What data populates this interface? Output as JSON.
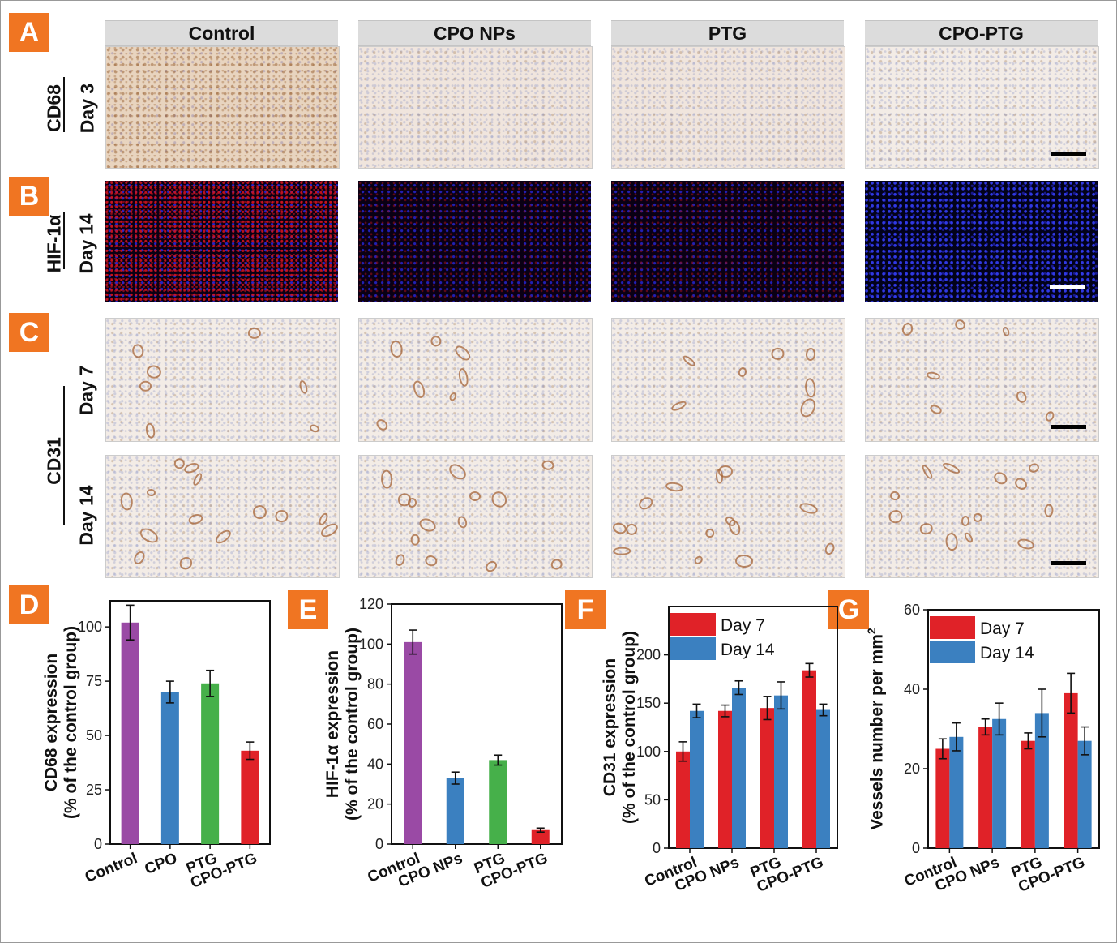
{
  "panel_labels": [
    "A",
    "B",
    "C",
    "D",
    "E",
    "F",
    "G"
  ],
  "column_headers": [
    "Control",
    "CPO NPs",
    "PTG",
    "CPO-PTG"
  ],
  "row_labels": {
    "cd68": "CD68",
    "day3": "Day 3",
    "hif": "HIF-1α",
    "day14_b": "Day 14",
    "cd31": "CD31",
    "day7": "Day 7",
    "day14_c": "Day 14"
  },
  "chart_data": [
    {
      "type": "bar",
      "panel": "D",
      "categories": [
        "Control",
        "CPO",
        "PTG",
        "CPO-PTG"
      ],
      "series": [
        {
          "values": [
            102,
            70,
            74,
            43
          ],
          "errors": [
            8,
            5,
            6,
            4
          ]
        }
      ],
      "bar_colors": [
        "#9a4aa5",
        "#3b80c0",
        "#46b04a",
        "#e02228"
      ],
      "ylabel_line1": "CD68 expression",
      "ylabel_line2": "(% of the control group)",
      "yticks": [
        0,
        25,
        50,
        75,
        100
      ],
      "ylim": [
        0,
        112
      ]
    },
    {
      "type": "bar",
      "panel": "E",
      "categories": [
        "Control",
        "CPO NPs",
        "PTG",
        "CPO-PTG"
      ],
      "series": [
        {
          "values": [
            101,
            33,
            42,
            7
          ],
          "errors": [
            6,
            3,
            2.5,
            1
          ]
        }
      ],
      "bar_colors": [
        "#9a4aa5",
        "#3b80c0",
        "#46b04a",
        "#e02228"
      ],
      "ylabel_line1": "HIF-1α expression",
      "ylabel_line2": "(% of the control group)",
      "yticks": [
        0,
        20,
        40,
        60,
        80,
        100,
        120
      ],
      "ylim": [
        0,
        120
      ]
    },
    {
      "type": "bar",
      "panel": "F",
      "categories": [
        "Control",
        "CPO NPs",
        "PTG",
        "CPO-PTG"
      ],
      "series": [
        {
          "name": "Day 7",
          "color": "#e02228",
          "values": [
            100,
            142,
            145,
            184
          ],
          "errors": [
            10,
            6,
            12,
            7
          ]
        },
        {
          "name": "Day 14",
          "color": "#3b80c0",
          "values": [
            142,
            166,
            158,
            143
          ],
          "errors": [
            7,
            7,
            14,
            6
          ]
        }
      ],
      "ylabel_line1": "CD31 expression",
      "ylabel_line2": "(% of the control group)",
      "yticks": [
        0,
        50,
        100,
        150,
        200
      ],
      "ylim": [
        0,
        250
      ],
      "legend_position": "top-left"
    },
    {
      "type": "bar",
      "panel": "G",
      "categories": [
        "Control",
        "CPO NPs",
        "PTG",
        "CPO-PTG"
      ],
      "series": [
        {
          "name": "Day 7",
          "color": "#e02228",
          "values": [
            25,
            30.5,
            27,
            39
          ],
          "errors": [
            2.5,
            2,
            2,
            5
          ]
        },
        {
          "name": "Day 14",
          "color": "#3b80c0",
          "values": [
            28,
            32.5,
            34,
            27
          ],
          "errors": [
            3.5,
            4,
            6,
            3.5
          ]
        }
      ],
      "ylabel_line1": "Vessels number per mm",
      "ylabel_sup": "2",
      "yticks": [
        0,
        20,
        40,
        60
      ],
      "ylim": [
        0,
        60
      ],
      "legend_position": "top-left"
    }
  ]
}
